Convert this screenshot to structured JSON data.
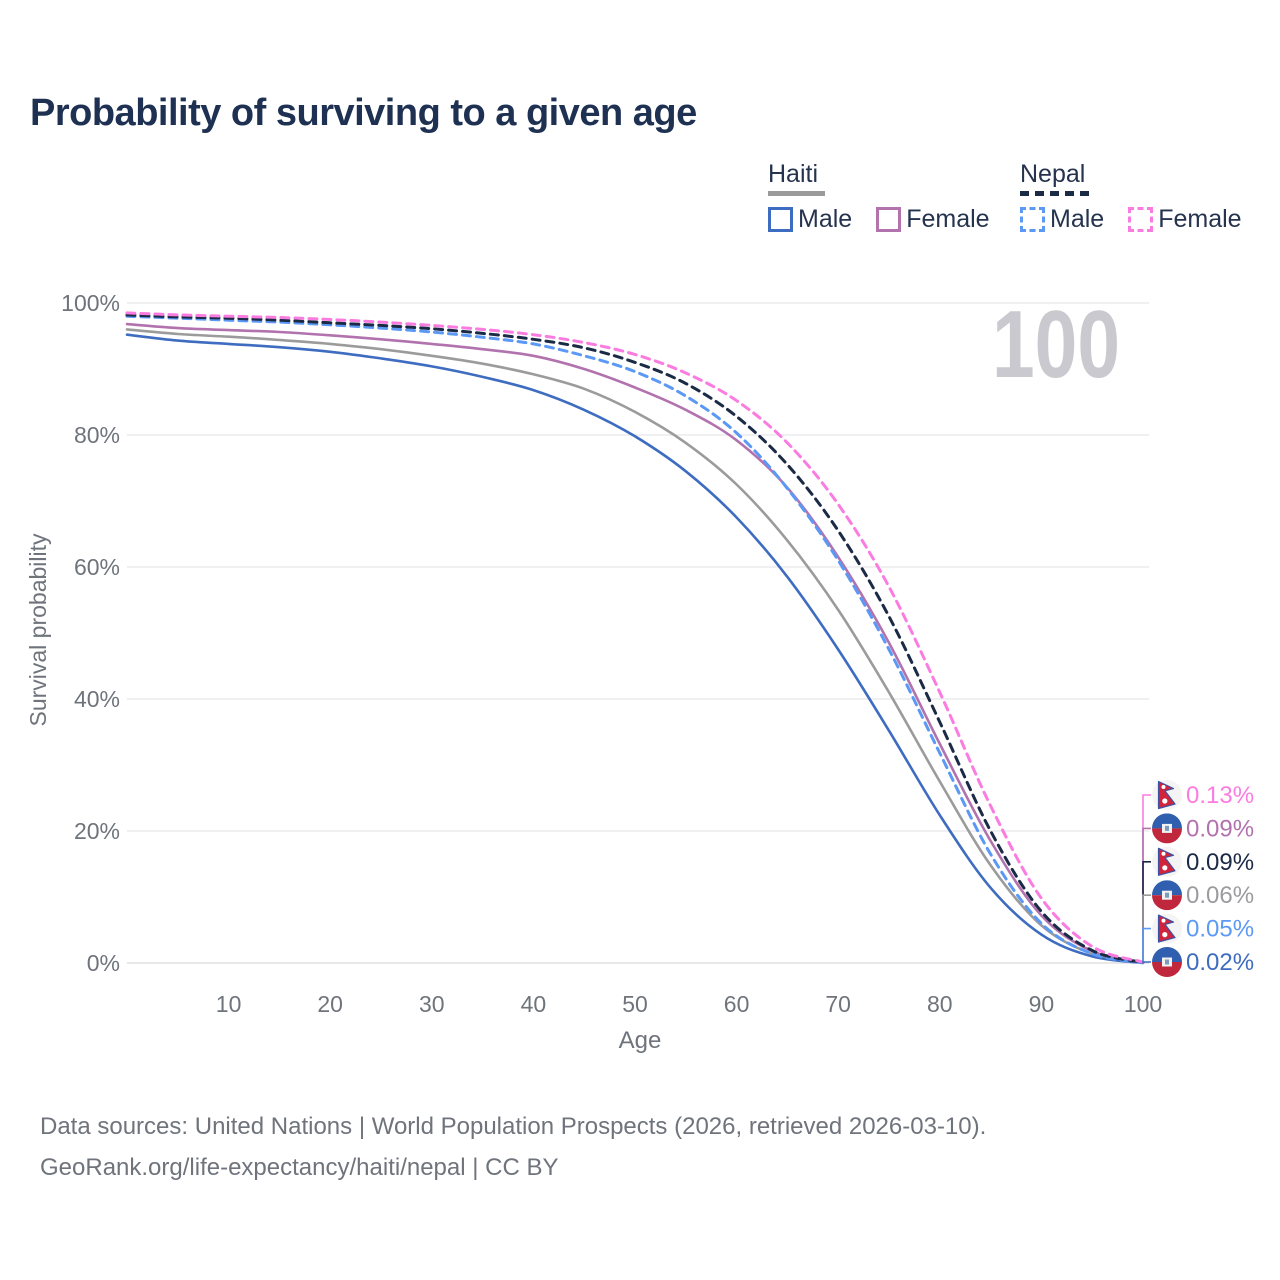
{
  "header": {
    "title": "Probability of surviving to a given age"
  },
  "legend": {
    "groups": [
      {
        "label": "Haiti",
        "underline_style": "solid",
        "underline_color": "#9b9b9b",
        "items": [
          {
            "label": "Male",
            "color": "#3e6cc0",
            "dash": false
          },
          {
            "label": "Female",
            "color": "#b172ae",
            "dash": false
          }
        ]
      },
      {
        "label": "Nepal",
        "underline_style": "dashed",
        "underline_color": "#1b2a45",
        "items": [
          {
            "label": "Male",
            "color": "#5b99f5",
            "dash": true
          },
          {
            "label": "Female",
            "color": "#fb7ce0",
            "dash": true
          }
        ]
      }
    ]
  },
  "chart_data": {
    "type": "line",
    "title": "Probability of surviving to a given age",
    "xlabel": "Age",
    "ylabel": "Survival probability",
    "xlim": [
      0,
      100
    ],
    "ylim": [
      0,
      100
    ],
    "grid": "horizontal",
    "watermark": "100",
    "x_ticks": [
      10,
      20,
      30,
      40,
      50,
      60,
      70,
      80,
      90,
      100
    ],
    "y_ticks": [
      {
        "v": 0,
        "label": "0%"
      },
      {
        "v": 20,
        "label": "20%"
      },
      {
        "v": 40,
        "label": "40%"
      },
      {
        "v": 60,
        "label": "60%"
      },
      {
        "v": 80,
        "label": "80%"
      },
      {
        "v": 100,
        "label": "100%"
      }
    ],
    "x": [
      0,
      5,
      10,
      15,
      20,
      25,
      30,
      35,
      40,
      45,
      50,
      55,
      60,
      65,
      70,
      75,
      80,
      85,
      90,
      95,
      100
    ],
    "series": [
      {
        "name": "Haiti Total",
        "country": "haiti",
        "sex": "total",
        "color": "#9b9b9b",
        "dashed": false,
        "values": [
          96.0,
          95.3,
          94.9,
          94.4,
          93.8,
          93.0,
          92.0,
          90.8,
          89.2,
          87.0,
          83.5,
          78.8,
          72.5,
          64.0,
          53.5,
          41.0,
          27.5,
          14.8,
          5.7,
          1.4,
          0.06
        ]
      },
      {
        "name": "Haiti Male",
        "country": "haiti",
        "sex": "male",
        "color": "#3e6cc0",
        "dashed": false,
        "values": [
          95.2,
          94.3,
          93.8,
          93.3,
          92.6,
          91.6,
          90.4,
          88.8,
          86.8,
          83.8,
          79.8,
          74.5,
          67.5,
          58.5,
          47.5,
          35.2,
          22.4,
          11.4,
          4.3,
          1.0,
          0.02
        ]
      },
      {
        "name": "Haiti Female",
        "country": "haiti",
        "sex": "female",
        "color": "#b172ae",
        "dashed": false,
        "values": [
          96.8,
          96.2,
          95.9,
          95.6,
          95.1,
          94.5,
          93.8,
          93.0,
          92.0,
          90.0,
          87.2,
          83.8,
          79.2,
          72.0,
          61.5,
          48.5,
          33.2,
          18.5,
          7.2,
          1.8,
          0.09
        ]
      },
      {
        "name": "Nepal Male",
        "country": "nepal",
        "sex": "male",
        "color": "#5b99f5",
        "dashed": true,
        "values": [
          98.0,
          97.7,
          97.4,
          97.1,
          96.7,
          96.2,
          95.6,
          94.8,
          93.8,
          92.0,
          89.6,
          85.9,
          80.3,
          71.9,
          61.0,
          47.5,
          31.8,
          16.5,
          6.0,
          1.4,
          0.05
        ]
      },
      {
        "name": "Nepal Total",
        "country": "nepal",
        "sex": "total",
        "color": "#1b2a45",
        "dashed": true,
        "values": [
          98.2,
          97.9,
          97.7,
          97.4,
          97.0,
          96.6,
          96.1,
          95.4,
          94.5,
          93.2,
          91.0,
          87.8,
          82.8,
          75.5,
          65.5,
          52.5,
          36.5,
          20.0,
          7.8,
          1.9,
          0.09
        ]
      },
      {
        "name": "Nepal Female",
        "country": "nepal",
        "sex": "female",
        "color": "#fb7ce0",
        "dashed": true,
        "values": [
          98.5,
          98.2,
          98.0,
          97.8,
          97.5,
          97.1,
          96.6,
          96.0,
          95.2,
          94.0,
          92.2,
          89.4,
          85.2,
          78.8,
          69.5,
          57.0,
          41.0,
          23.8,
          9.8,
          2.5,
          0.13
        ]
      }
    ],
    "end_labels": [
      {
        "series": "Nepal Female",
        "flag": "nepal",
        "text": "0.13%",
        "color": "#fb7ce0"
      },
      {
        "series": "Haiti Female",
        "flag": "haiti",
        "text": "0.09%",
        "color": "#b172ae"
      },
      {
        "series": "Nepal Total",
        "flag": "nepal",
        "text": "0.09%",
        "color": "#1b2a45"
      },
      {
        "series": "Haiti Total",
        "flag": "haiti",
        "text": "0.06%",
        "color": "#9b9ba0"
      },
      {
        "series": "Nepal Male",
        "flag": "nepal",
        "text": "0.05%",
        "color": "#5b99f5"
      },
      {
        "series": "Haiti Male",
        "flag": "haiti",
        "text": "0.02%",
        "color": "#3e6cc0"
      }
    ]
  },
  "footer": {
    "line1": "Data sources: United Nations | World Population Prospects (2026, retrieved 2026-03-10).",
    "line2": "GeoRank.org/life-expectancy/haiti/nepal | CC BY"
  }
}
